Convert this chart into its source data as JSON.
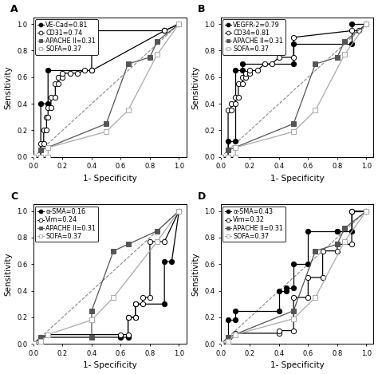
{
  "panels": [
    {
      "label": "A",
      "legend": [
        "VE-Cad=0.81",
        "CD31=0.74",
        "APACHE II=0.31",
        "SOFA=0.37"
      ],
      "series": [
        {
          "x": [
            0.0,
            0.05,
            0.05,
            0.1,
            0.1,
            0.4,
            0.4,
            0.4,
            0.9,
            1.0
          ],
          "y": [
            0.0,
            0.0,
            0.4,
            0.4,
            0.65,
            0.65,
            0.85,
            0.95,
            0.95,
            1.0
          ],
          "marker": "o",
          "filled": true,
          "color": "black",
          "lc": "black"
        },
        {
          "x": [
            0.0,
            0.05,
            0.05,
            0.07,
            0.07,
            0.09,
            0.09,
            0.1,
            0.1,
            0.12,
            0.12,
            0.15,
            0.15,
            0.17,
            0.17,
            0.2,
            0.2,
            0.25,
            0.3,
            0.35,
            0.4,
            0.9,
            0.9,
            1.0
          ],
          "y": [
            0.0,
            0.0,
            0.1,
            0.1,
            0.2,
            0.2,
            0.3,
            0.3,
            0.37,
            0.37,
            0.45,
            0.45,
            0.55,
            0.55,
            0.6,
            0.6,
            0.63,
            0.63,
            0.63,
            0.65,
            0.65,
            0.95,
            0.95,
            1.0
          ],
          "marker": "o",
          "filled": false,
          "color": "black",
          "lc": "black"
        },
        {
          "x": [
            0.0,
            0.05,
            0.05,
            0.5,
            0.65,
            0.8,
            0.85,
            1.0
          ],
          "y": [
            0.0,
            0.0,
            0.05,
            0.25,
            0.7,
            0.75,
            0.87,
            1.0
          ],
          "marker": "s",
          "filled": true,
          "color": "#555555",
          "lc": "#555555"
        },
        {
          "x": [
            0.0,
            0.05,
            0.1,
            0.1,
            0.5,
            0.65,
            0.85,
            1.0
          ],
          "y": [
            0.0,
            0.0,
            0.0,
            0.07,
            0.19,
            0.35,
            0.77,
            1.0
          ],
          "marker": "s",
          "filled": false,
          "color": "#aaaaaa",
          "lc": "#aaaaaa"
        }
      ]
    },
    {
      "label": "B",
      "legend": [
        "VEGFR-2=0.79",
        "CD34=0.81",
        "APACHE II=0.31",
        "SOFA=0.37"
      ],
      "series": [
        {
          "x": [
            0.0,
            0.05,
            0.05,
            0.1,
            0.1,
            0.15,
            0.15,
            0.5,
            0.5,
            0.9,
            0.9,
            1.0
          ],
          "y": [
            0.0,
            0.0,
            0.12,
            0.12,
            0.65,
            0.65,
            0.7,
            0.7,
            0.85,
            0.85,
            1.0,
            1.0
          ],
          "marker": "o",
          "filled": true,
          "color": "black",
          "lc": "black"
        },
        {
          "x": [
            0.0,
            0.05,
            0.05,
            0.07,
            0.07,
            0.1,
            0.1,
            0.12,
            0.12,
            0.15,
            0.15,
            0.17,
            0.17,
            0.2,
            0.2,
            0.25,
            0.3,
            0.35,
            0.4,
            0.5,
            0.5,
            0.9,
            0.95,
            1.0
          ],
          "y": [
            0.0,
            0.0,
            0.35,
            0.35,
            0.4,
            0.4,
            0.45,
            0.45,
            0.55,
            0.55,
            0.6,
            0.6,
            0.63,
            0.63,
            0.65,
            0.65,
            0.7,
            0.7,
            0.75,
            0.75,
            0.9,
            0.95,
            0.95,
            1.0
          ],
          "marker": "o",
          "filled": false,
          "color": "black",
          "lc": "black"
        },
        {
          "x": [
            0.0,
            0.05,
            0.05,
            0.5,
            0.65,
            0.8,
            0.85,
            1.0
          ],
          "y": [
            0.0,
            0.0,
            0.05,
            0.25,
            0.7,
            0.75,
            0.87,
            1.0
          ],
          "marker": "s",
          "filled": true,
          "color": "#555555",
          "lc": "#555555"
        },
        {
          "x": [
            0.0,
            0.05,
            0.1,
            0.1,
            0.5,
            0.65,
            0.85,
            1.0
          ],
          "y": [
            0.0,
            0.0,
            0.0,
            0.07,
            0.19,
            0.35,
            0.77,
            1.0
          ],
          "marker": "s",
          "filled": false,
          "color": "#aaaaaa",
          "lc": "#aaaaaa"
        }
      ]
    },
    {
      "label": "C",
      "legend": [
        "α-SMA=0.16",
        "Vim=0.24",
        "APACHE II=0.31",
        "SOFA=0.37"
      ],
      "series": [
        {
          "x": [
            0.0,
            0.05,
            0.6,
            0.65,
            0.65,
            0.7,
            0.7,
            0.9,
            0.9,
            0.95,
            1.0
          ],
          "y": [
            0.0,
            0.05,
            0.05,
            0.05,
            0.2,
            0.2,
            0.3,
            0.3,
            0.62,
            0.62,
            1.0
          ],
          "marker": "o",
          "filled": true,
          "color": "black",
          "lc": "black"
        },
        {
          "x": [
            0.0,
            0.05,
            0.1,
            0.6,
            0.65,
            0.65,
            0.7,
            0.7,
            0.75,
            0.75,
            0.8,
            0.8,
            0.9,
            1.0
          ],
          "y": [
            0.0,
            0.05,
            0.07,
            0.07,
            0.07,
            0.2,
            0.2,
            0.3,
            0.3,
            0.35,
            0.35,
            0.77,
            0.77,
            1.0
          ],
          "marker": "o",
          "filled": false,
          "color": "black",
          "lc": "black"
        },
        {
          "x": [
            0.0,
            0.05,
            0.4,
            0.4,
            0.55,
            0.65,
            0.85,
            1.0
          ],
          "y": [
            0.0,
            0.05,
            0.05,
            0.25,
            0.7,
            0.75,
            0.85,
            1.0
          ],
          "marker": "s",
          "filled": true,
          "color": "#555555",
          "lc": "#555555"
        },
        {
          "x": [
            0.0,
            0.05,
            0.1,
            0.4,
            0.55,
            0.85,
            1.0
          ],
          "y": [
            0.0,
            0.02,
            0.07,
            0.18,
            0.35,
            0.77,
            1.0
          ],
          "marker": "s",
          "filled": false,
          "color": "#aaaaaa",
          "lc": "#aaaaaa"
        }
      ]
    },
    {
      "label": "D",
      "legend": [
        "α-SMA=0.43",
        "Vim=0.32",
        "APACHE II=0.31",
        "SOFA=0.37"
      ],
      "series": [
        {
          "x": [
            0.0,
            0.05,
            0.05,
            0.1,
            0.1,
            0.4,
            0.4,
            0.45,
            0.45,
            0.5,
            0.5,
            0.6,
            0.6,
            0.8,
            0.8,
            0.9,
            0.9,
            1.0
          ],
          "y": [
            0.0,
            0.0,
            0.18,
            0.18,
            0.25,
            0.25,
            0.4,
            0.4,
            0.42,
            0.42,
            0.6,
            0.6,
            0.85,
            0.85,
            0.85,
            0.85,
            1.0,
            1.0
          ],
          "marker": "o",
          "filled": true,
          "color": "black",
          "lc": "black"
        },
        {
          "x": [
            0.0,
            0.05,
            0.1,
            0.4,
            0.4,
            0.5,
            0.5,
            0.6,
            0.6,
            0.7,
            0.7,
            0.8,
            0.8,
            0.9,
            0.9,
            1.0
          ],
          "y": [
            0.0,
            0.0,
            0.08,
            0.08,
            0.1,
            0.1,
            0.35,
            0.35,
            0.5,
            0.5,
            0.7,
            0.7,
            0.75,
            0.75,
            1.0,
            1.0
          ],
          "marker": "o",
          "filled": false,
          "color": "black",
          "lc": "black"
        },
        {
          "x": [
            0.0,
            0.05,
            0.5,
            0.65,
            0.8,
            0.85,
            1.0
          ],
          "y": [
            0.0,
            0.05,
            0.25,
            0.7,
            0.75,
            0.87,
            1.0
          ],
          "marker": "s",
          "filled": true,
          "color": "#555555",
          "lc": "#555555"
        },
        {
          "x": [
            0.0,
            0.05,
            0.1,
            0.5,
            0.65,
            0.85,
            1.0
          ],
          "y": [
            0.0,
            0.02,
            0.07,
            0.19,
            0.35,
            0.77,
            1.0
          ],
          "marker": "s",
          "filled": false,
          "color": "#aaaaaa",
          "lc": "#aaaaaa"
        }
      ]
    }
  ],
  "xlabel": "1- Specificity",
  "ylabel": "Sensitivity",
  "xlim": [
    0.0,
    1.05
  ],
  "ylim": [
    0.0,
    1.05
  ],
  "xticks": [
    0.0,
    0.2,
    0.4,
    0.6,
    0.8,
    1.0
  ],
  "yticks": [
    0.0,
    0.2,
    0.4,
    0.6,
    0.8,
    1.0
  ],
  "diag_color": "#888888",
  "legend_fontsize": 5.8,
  "axis_fontsize": 7.5,
  "tick_fontsize": 6.0,
  "label_fontsize": 9,
  "ms": 4.5,
  "lw": 0.9
}
